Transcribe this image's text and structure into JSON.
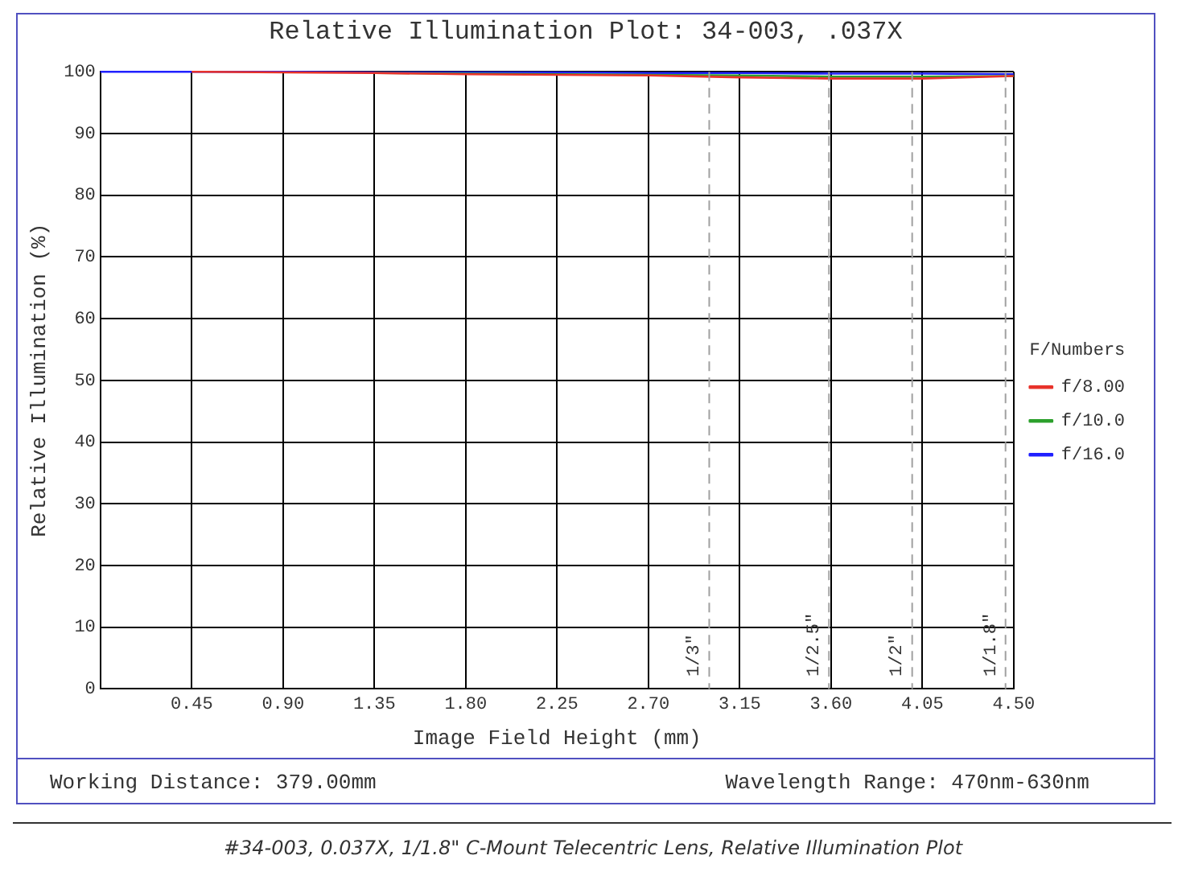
{
  "chart_data": {
    "type": "line",
    "title": "Relative Illumination Plot: 34-003, .037X",
    "xlabel": "Image Field Height (mm)",
    "ylabel": "Relative Illumination (%)",
    "legend_title": "F/Numbers",
    "legend": "right",
    "x": [
      0,
      0.45,
      0.9,
      1.35,
      1.8,
      2.25,
      2.7,
      3.15,
      3.6,
      4.05,
      4.5
    ],
    "series": [
      {
        "name": "f/8.00",
        "color": "#e8322a",
        "values": [
          null,
          100,
          99.9,
          99.8,
          99.6,
          99.5,
          99.4,
          99.1,
          98.9,
          98.9,
          99.3
        ]
      },
      {
        "name": "f/10.0",
        "color": "#2ca02c",
        "values": [
          null,
          null,
          null,
          99.8,
          99.7,
          99.6,
          99.5,
          99.4,
          99.2,
          99.2,
          99.3
        ]
      },
      {
        "name": "f/16.0",
        "color": "#2020ff",
        "values": [
          100,
          100,
          100,
          99.9,
          99.9,
          99.9,
          99.8,
          99.8,
          99.7,
          99.7,
          99.6
        ]
      }
    ],
    "xlim": [
      0,
      4.5
    ],
    "xticks": [
      {
        "value": 0.45,
        "label": "0.45"
      },
      {
        "value": 0.9,
        "label": "0.90"
      },
      {
        "value": 1.35,
        "label": "1.35"
      },
      {
        "value": 1.8,
        "label": "1.80"
      },
      {
        "value": 2.25,
        "label": "2.25"
      },
      {
        "value": 2.7,
        "label": "2.70"
      },
      {
        "value": 3.15,
        "label": "3.15"
      },
      {
        "value": 3.6,
        "label": "3.60"
      },
      {
        "value": 4.05,
        "label": "4.05"
      },
      {
        "value": 4.5,
        "label": "4.50"
      }
    ],
    "ylim": [
      0,
      100
    ],
    "yticks": [
      0,
      10,
      20,
      30,
      40,
      50,
      60,
      70,
      80,
      90,
      100
    ],
    "grid": true,
    "marker": "none",
    "line_style": "solid",
    "ref_lines": [
      {
        "axis": "x",
        "value": 3.0,
        "color": "#a0a0a0",
        "line_style": "dashed"
      },
      {
        "axis": "x",
        "value": 3.59,
        "color": "#a0a0a0",
        "line_style": "dashed"
      },
      {
        "axis": "x",
        "value": 4.0,
        "color": "#a0a0a0",
        "line_style": "dashed"
      },
      {
        "axis": "x",
        "value": 4.46,
        "color": "#a0a0a0",
        "line_style": "dashed"
      }
    ],
    "annotations": [
      "Working Distance: 379.00mm",
      "Wavelength Range: 470nm-630nm",
      "#34-003, 0.037X, 1/1.8\" C-Mount Telecentric Lens, Relative Illumination Plot",
      {
        "text": "1/3\"",
        "x": 3.0,
        "y": 2
      },
      {
        "text": "1/2.5\"",
        "x": 3.59,
        "y": 2
      },
      {
        "text": "1/2\"",
        "x": 4.0,
        "y": 2
      },
      {
        "text": "1/1.8\"",
        "x": 4.46,
        "y": 2
      }
    ]
  }
}
